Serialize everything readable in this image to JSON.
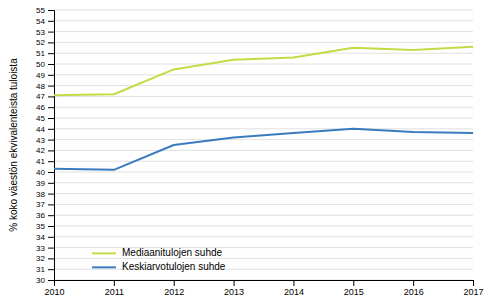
{
  "chart_data": {
    "type": "line",
    "ylabel": "% koko väestön ekvivalenteista tuloista",
    "x": [
      2010,
      2011,
      2012,
      2013,
      2014,
      2015,
      2016,
      2017
    ],
    "series": [
      {
        "name": "Mediaanitulojen suhde",
        "color": "#c8d946",
        "values": [
          47.1,
          47.2,
          49.5,
          50.4,
          50.6,
          51.5,
          51.3,
          51.6
        ]
      },
      {
        "name": "Keskiarvotulojen suhde",
        "color": "#3a7bbf",
        "values": [
          40.3,
          40.2,
          42.5,
          43.2,
          43.6,
          44.0,
          43.7,
          43.6
        ]
      }
    ],
    "xlim": [
      2010,
      2017
    ],
    "xticks": [
      2010,
      2011,
      2012,
      2013,
      2014,
      2015,
      2016,
      2017
    ],
    "ylim": [
      30,
      55
    ],
    "yticks": [
      30,
      31,
      32,
      33,
      34,
      35,
      36,
      37,
      38,
      39,
      40,
      41,
      42,
      43,
      44,
      45,
      46,
      47,
      48,
      49,
      50,
      51,
      52,
      53,
      54,
      55
    ],
    "grid": "y",
    "legend": "lower left"
  }
}
